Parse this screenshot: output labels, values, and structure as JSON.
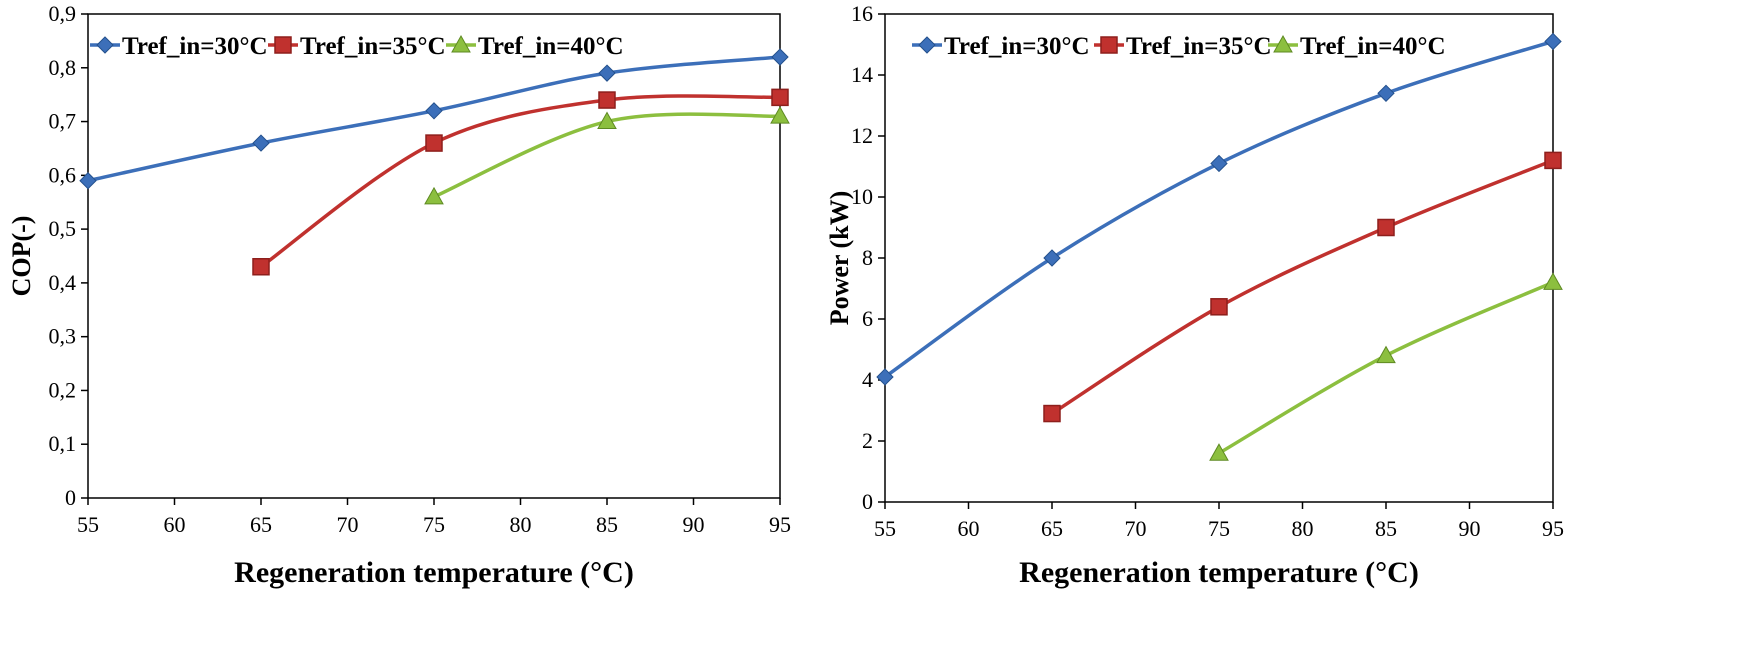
{
  "chart_data": [
    {
      "type": "line",
      "title": "",
      "xlabel": "Regeneration temperature (°C)",
      "ylabel": "COP(-)",
      "xlim": [
        55,
        95
      ],
      "ylim": [
        0,
        0.9
      ],
      "xticks": [
        55,
        60,
        65,
        70,
        75,
        80,
        85,
        90,
        95
      ],
      "xtick_labels": [
        "55",
        "60",
        "65",
        "70",
        "75",
        "80",
        "85",
        "90",
        "95"
      ],
      "yticks": [
        0,
        0.1,
        0.2,
        0.3,
        0.4,
        0.5,
        0.6,
        0.7,
        0.8,
        0.9
      ],
      "ytick_labels": [
        "0",
        "0,1",
        "0,2",
        "0,3",
        "0,4",
        "0,5",
        "0,6",
        "0,7",
        "0,8",
        "0,9"
      ],
      "legend": "top",
      "series": [
        {
          "name": "Tref_in=30°C",
          "color": "#3c6fb9",
          "marker": "diamond",
          "x": [
            55,
            65,
            75,
            85,
            95
          ],
          "y": [
            0.59,
            0.66,
            0.72,
            0.79,
            0.82
          ]
        },
        {
          "name": "Tref_in=35°C",
          "color": "#c0312e",
          "marker": "square",
          "x": [
            65,
            75,
            85,
            95
          ],
          "y": [
            0.43,
            0.66,
            0.74,
            0.745
          ]
        },
        {
          "name": "Tref_in=40°C",
          "color": "#8cbf3f",
          "marker": "triangle",
          "x": [
            75,
            85,
            95
          ],
          "y": [
            0.56,
            0.7,
            0.71
          ]
        }
      ]
    },
    {
      "type": "line",
      "title": "",
      "xlabel": "Regeneration temperature (°C)",
      "ylabel": "Power (kW)",
      "xlim": [
        55,
        95
      ],
      "ylim": [
        0,
        16
      ],
      "xticks": [
        55,
        60,
        65,
        70,
        75,
        80,
        85,
        90,
        95
      ],
      "xtick_labels": [
        "55",
        "60",
        "65",
        "70",
        "75",
        "80",
        "85",
        "90",
        "95"
      ],
      "yticks": [
        0,
        2,
        4,
        6,
        8,
        10,
        12,
        14,
        16
      ],
      "ytick_labels": [
        "0",
        "2",
        "4",
        "6",
        "8",
        "10",
        "12",
        "14",
        "16"
      ],
      "legend": "top",
      "series": [
        {
          "name": "Tref_in=30°C",
          "color": "#3c6fb9",
          "marker": "diamond",
          "x": [
            55,
            65,
            75,
            85,
            95
          ],
          "y": [
            4.1,
            8.0,
            11.1,
            13.4,
            15.1
          ]
        },
        {
          "name": "Tref_in=35°C",
          "color": "#c0312e",
          "marker": "square",
          "x": [
            65,
            75,
            85,
            95
          ],
          "y": [
            2.9,
            6.4,
            9.0,
            11.2
          ]
        },
        {
          "name": "Tref_in=40°C",
          "color": "#8cbf3f",
          "marker": "triangle",
          "x": [
            75,
            85,
            95
          ],
          "y": [
            1.6,
            4.8,
            7.2
          ]
        }
      ]
    }
  ]
}
